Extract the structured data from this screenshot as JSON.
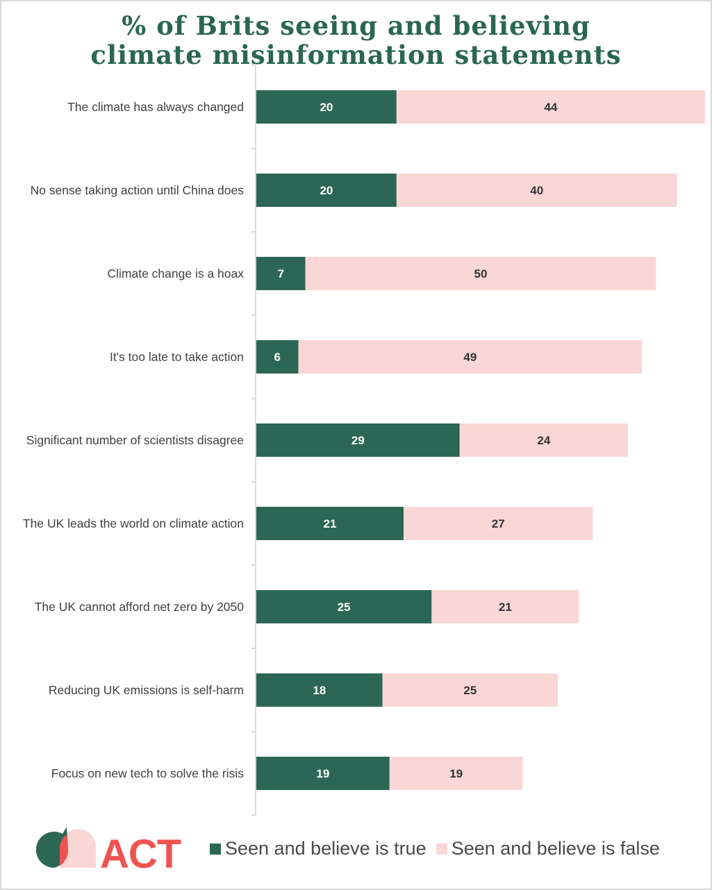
{
  "colors": {
    "title": "#2a6653",
    "true_series": "#2c6755",
    "false_series": "#f9d7d6",
    "true_label": "#ffffff",
    "false_label": "#333333",
    "axis": "#d9d9d9",
    "logo_green": "#2c6755",
    "logo_red": "#ef5350",
    "logo_pink": "#f9d7d6"
  },
  "brand": {
    "name": "ACT"
  },
  "chart_data": {
    "type": "bar",
    "orientation": "horizontal",
    "stacked": true,
    "title": "% of Brits seeing and believing climate misinformation statements",
    "title_lines": [
      "% of Brits seeing and believing",
      "climate misinformation statements"
    ],
    "xlabel": "",
    "ylabel": "",
    "xlim": [
      0,
      64
    ],
    "grid": false,
    "legend_position": "bottom",
    "categories": [
      "The climate has always changed",
      "No sense taking action until China does",
      "Climate change is a hoax",
      "It's too late to take action",
      "Significant number of scientists disagree",
      "The UK leads the world on climate action",
      "The UK cannot afford net zero by 2050",
      "Reducing UK emissions is self-harm",
      "Focus on new tech to solve the risis"
    ],
    "series": [
      {
        "name": "Seen and believe is true",
        "values": [
          20,
          20,
          7,
          6,
          29,
          21,
          25,
          18,
          19
        ]
      },
      {
        "name": "Seen and believe is false",
        "values": [
          44,
          40,
          50,
          49,
          24,
          27,
          21,
          25,
          19
        ]
      }
    ]
  }
}
